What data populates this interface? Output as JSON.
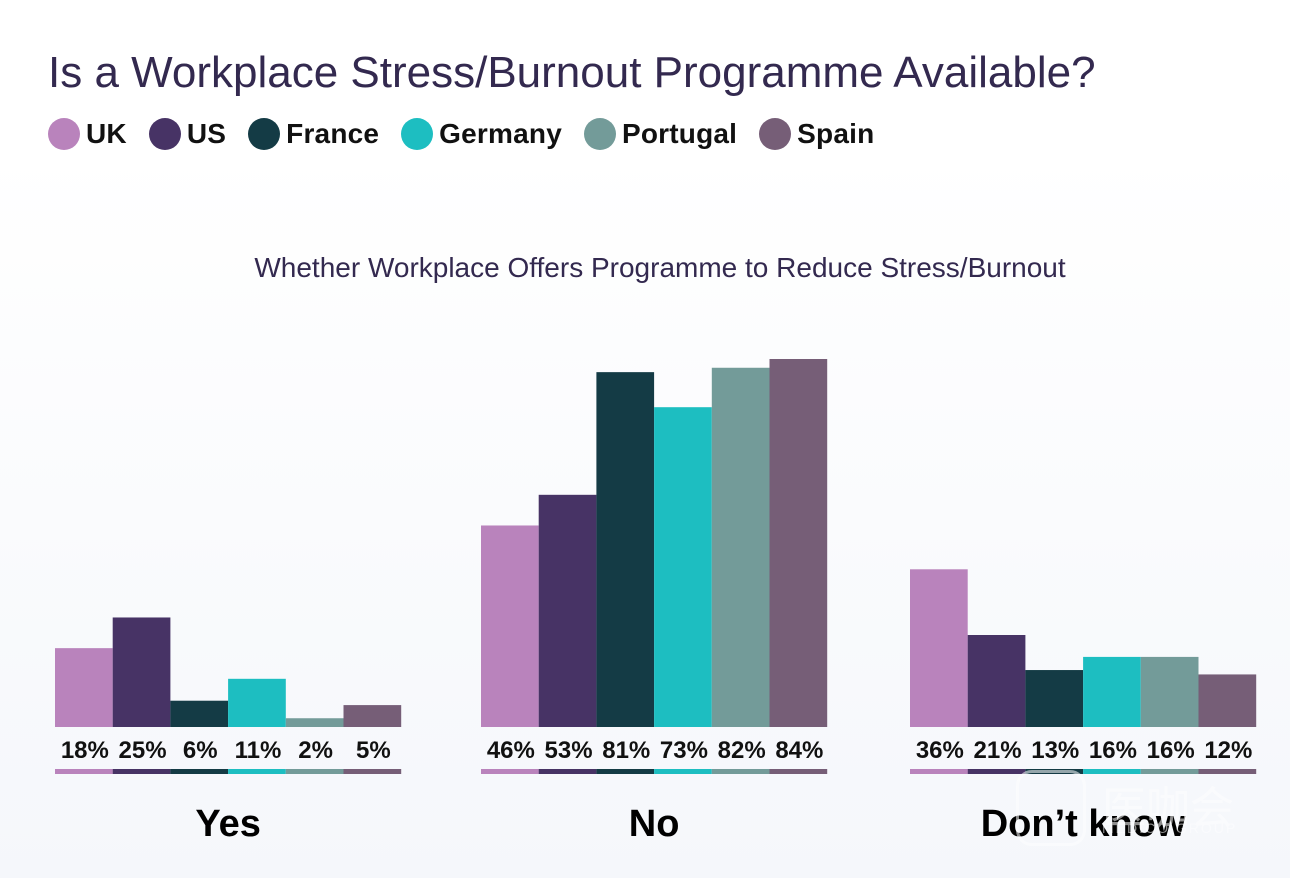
{
  "title": "Is a Workplace Stress/Burnout Programme Available?",
  "subtitle": "Whether Workplace Offers Programme to Reduce Stress/Burnout",
  "watermark": {
    "name": "医咖会",
    "sub": "MEDICO GROUP"
  },
  "chart_data": {
    "type": "bar",
    "title": "Is a Workplace Stress/Burnout Programme Available?",
    "subtitle": "Whether Workplace Offers Programme to Reduce Stress/Burnout",
    "categories": [
      "Yes",
      "No",
      "Don’t know"
    ],
    "series": [
      {
        "name": "UK",
        "color": "#b983bc",
        "values": [
          18,
          46,
          36
        ],
        "labels": [
          "18%",
          "46%",
          "36%"
        ]
      },
      {
        "name": "US",
        "color": "#473365",
        "values": [
          25,
          53,
          21
        ],
        "labels": [
          "25%",
          "53%",
          "21%"
        ]
      },
      {
        "name": "France",
        "color": "#143b45",
        "values": [
          6,
          81,
          13
        ],
        "labels": [
          "6%",
          "81%",
          "13%"
        ]
      },
      {
        "name": "Germany",
        "color": "#1dbec1",
        "values": [
          11,
          73,
          16
        ],
        "labels": [
          "11%",
          "73%",
          "16%"
        ]
      },
      {
        "name": "Portugal",
        "color": "#739b99",
        "values": [
          2,
          82,
          16
        ],
        "labels": [
          "2%",
          "82%",
          "16%"
        ]
      },
      {
        "name": "Spain",
        "color": "#765e77",
        "values": [
          5,
          84,
          12
        ],
        "labels": [
          "5%",
          "84%",
          "12%"
        ]
      }
    ],
    "ylim": [
      0,
      84
    ],
    "grid": false,
    "legend": "top-left",
    "xlabel": "",
    "ylabel": ""
  }
}
